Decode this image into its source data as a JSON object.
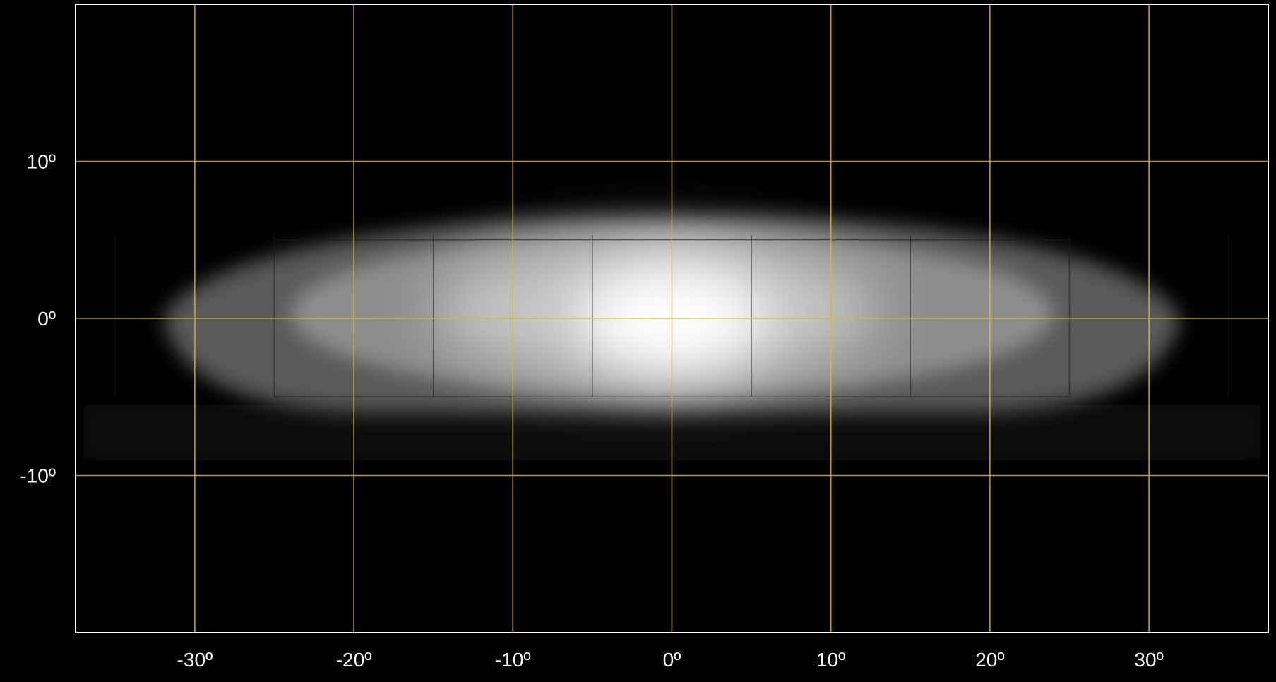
{
  "chart_data": {
    "type": "heatmap",
    "title": "",
    "xlabel": "",
    "ylabel": "",
    "xlim": [
      -37.5,
      37.5
    ],
    "ylim": [
      -20,
      20
    ],
    "grid": true,
    "major_grid_step_deg": 10,
    "minor_grid_step_deg": 5,
    "x_ticks": [
      {
        "value": -30,
        "label": "-30º"
      },
      {
        "value": -20,
        "label": "-20º"
      },
      {
        "value": -10,
        "label": "-10º"
      },
      {
        "value": 0,
        "label": "0º"
      },
      {
        "value": 10,
        "label": "10º"
      },
      {
        "value": 20,
        "label": "20º"
      },
      {
        "value": 30,
        "label": "30º"
      }
    ],
    "y_ticks": [
      {
        "value": 10,
        "label": "10º"
      },
      {
        "value": 0,
        "label": "0º"
      },
      {
        "value": -10,
        "label": "-10º"
      }
    ],
    "beam": {
      "description_units": "degrees",
      "center": [
        0,
        0
      ],
      "x_extent": [
        -32,
        32
      ],
      "y_extent": [
        -6,
        6.5
      ],
      "peak_intensity": 1.0
    },
    "colors": {
      "background": "#000000",
      "frame": "#ffffff",
      "major_grid": "#d6b83a",
      "minor_grid": "#1a1a1a",
      "tick_label": "#ffffff",
      "beam_peak": "#ffffff"
    }
  }
}
